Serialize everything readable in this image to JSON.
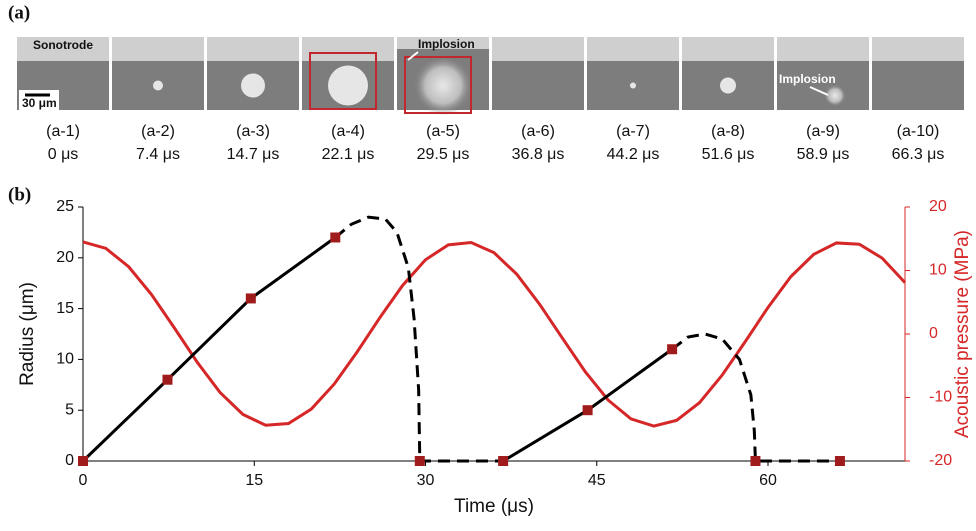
{
  "panel_a": {
    "label": "(a)",
    "frames": [
      {
        "id": "(a-1)",
        "time": "0 μs"
      },
      {
        "id": "(a-2)",
        "time": "7.4 μs"
      },
      {
        "id": "(a-3)",
        "time": "14.7 μs"
      },
      {
        "id": "(a-4)",
        "time": "22.1 μs"
      },
      {
        "id": "(a-5)",
        "time": "29.5 μs"
      },
      {
        "id": "(a-6)",
        "time": "36.8 μs"
      },
      {
        "id": "(a-7)",
        "time": "44.2 μs"
      },
      {
        "id": "(a-8)",
        "time": "51.6 μs"
      },
      {
        "id": "(a-9)",
        "time": "58.9 μs"
      },
      {
        "id": "(a-10)",
        "time": "66.3 μs"
      }
    ],
    "sonotrode": "Sonotrode",
    "scale_bar": "30 μm",
    "implosion_1": "Implosion",
    "implosion_2": "Implosion"
  },
  "chart_data": {
    "type": "line",
    "panel_label": "(b)",
    "xlabel": "Time (μs)",
    "ylabel": "Radius (μm)",
    "y2label": "Acoustic pressure (MPa)",
    "y2color": "#d62728",
    "xlim": [
      0,
      72
    ],
    "xticks": [
      0,
      15,
      30,
      45,
      60
    ],
    "ylim": [
      0,
      25
    ],
    "yticks": [
      0,
      5,
      10,
      15,
      20,
      25
    ],
    "y2lim": [
      -20,
      20
    ],
    "y2ticks": [
      -20,
      -10,
      0,
      10,
      20
    ],
    "series": [
      {
        "style": "solid",
        "axis": "y2",
        "color": "#d62728",
        "x": [
          0,
          2,
          4,
          6,
          8,
          10,
          12,
          14,
          16,
          18,
          20,
          22,
          24,
          26,
          28,
          30,
          32,
          34,
          36,
          38,
          40,
          42,
          44,
          46,
          48,
          50,
          52,
          54,
          56,
          58,
          60,
          62,
          64,
          66,
          68,
          70,
          72
        ],
        "values": [
          14.5,
          13.49,
          10.59,
          6.21,
          0.96,
          -4.43,
          -9.2,
          -12.66,
          -14.37,
          -14.09,
          -11.82,
          -7.89,
          -2.85,
          2.57,
          7.66,
          11.69,
          14.04,
          14.41,
          12.81,
          9.4,
          4.67,
          -0.68,
          -5.96,
          -10.41,
          -13.37,
          -14.5,
          -13.6,
          -10.82,
          -6.44,
          -1.22,
          4.18,
          9.03,
          12.54,
          14.34,
          14.13,
          11.95,
          8.09
        ]
      },
      {
        "style": "solid",
        "color": "#000000",
        "x": [
          0,
          7.4,
          14.7,
          22.1,
          29.5,
          36.8,
          44.2,
          51.6
        ],
        "values": [
          0,
          8,
          16,
          22,
          null,
          0,
          5,
          11
        ]
      },
      {
        "style": "dashed",
        "color": "#000000",
        "x": [
          22.1,
          23.5,
          25,
          26.5,
          27.5,
          28.5,
          29,
          29.4,
          29.5,
          36.8,
          44.2,
          51.6,
          53,
          54.5,
          56,
          57.5,
          58.5,
          58.8,
          58.9,
          66.3
        ],
        "values": [
          22,
          23.3,
          24,
          23.8,
          22.5,
          19,
          14,
          7,
          0,
          0,
          null,
          11,
          12.2,
          12.5,
          12,
          10,
          6.5,
          3,
          0,
          0
        ]
      },
      {
        "style": "markers",
        "color": "#a01c1c",
        "x": [
          0,
          7.4,
          14.7,
          22.1,
          29.5,
          36.8,
          44.2,
          51.6,
          58.9,
          66.3
        ],
        "values": [
          0,
          8,
          16,
          22,
          0,
          0,
          5,
          11,
          0,
          0
        ]
      }
    ]
  }
}
